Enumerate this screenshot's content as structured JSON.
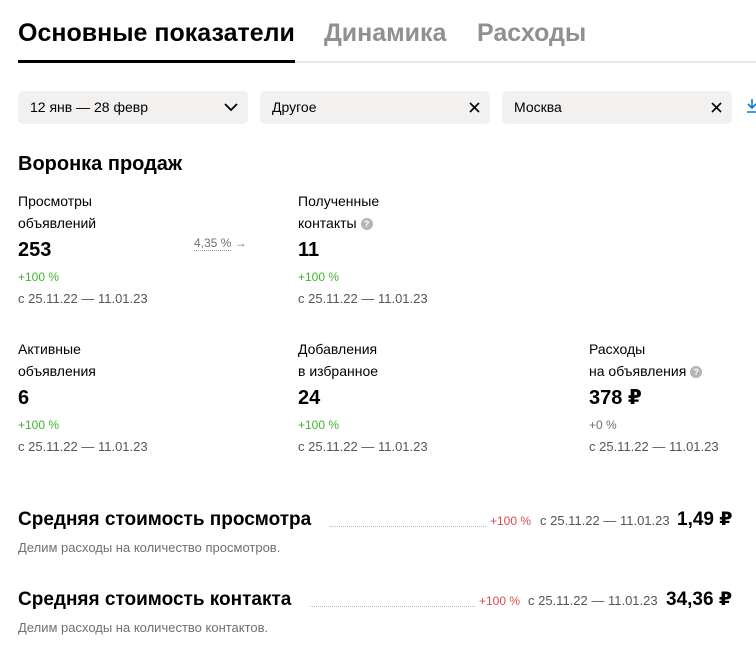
{
  "tabs": [
    {
      "label": "Основные показатели",
      "active": true
    },
    {
      "label": "Динамика",
      "active": false
    },
    {
      "label": "Расходы",
      "active": false
    }
  ],
  "filters": {
    "period": {
      "value": "12 янв — 28 февр",
      "icon": "chevron-down-icon"
    },
    "category": {
      "value": "Другое",
      "icon": "close-icon"
    },
    "region": {
      "value": "Москва",
      "icon": "close-icon"
    },
    "download_icon": "download-icon"
  },
  "funnel": {
    "title": "Воронка продаж",
    "views": {
      "label_line1": "Просмотры",
      "label_line2": "объявлений",
      "value": "253",
      "delta": "+100 %",
      "period": "с 25.11.22 — 11.01.23"
    },
    "conversion": {
      "value": "4,35 %",
      "arrow": "→"
    },
    "contacts": {
      "label_line1": "Полученные",
      "label_line2": "контакты",
      "value": "11",
      "delta": "+100 %",
      "period": "с 25.11.22 — 11.01.23"
    },
    "active": {
      "label_line1": "Активные",
      "label_line2": "объявления",
      "value": "6",
      "delta": "+100 %",
      "period": "с 25.11.22 — 11.01.23"
    },
    "favorites": {
      "label_line1": "Добавления",
      "label_line2": "в избранное",
      "value": "24",
      "delta": "+100 %",
      "period": "с 25.11.22 — 11.01.23"
    },
    "spend": {
      "label_line1": "Расходы",
      "label_line2": "на объявления",
      "value": "378 ₽",
      "delta": "+0 %",
      "period": "с 25.11.22 — 11.01.23"
    }
  },
  "costs": {
    "view": {
      "title": "Средняя стоимость просмотра",
      "delta": "+100 %",
      "period": "с 25.11.22 — 11.01.23",
      "value": "1,49 ₽",
      "note": "Делим расходы на количество просмотров."
    },
    "contact": {
      "title": "Средняя стоимость контакта",
      "delta": "+100 %",
      "period": "с 25.11.22 — 11.01.23",
      "value": "34,36 ₽",
      "note": "Делим расходы на количество контактов."
    }
  },
  "colors": {
    "positive": "#3fb42f",
    "negative": "#e0484f",
    "muted": "#909090",
    "filter_bg": "#f2f1f0",
    "link": "#0a7cd0"
  }
}
